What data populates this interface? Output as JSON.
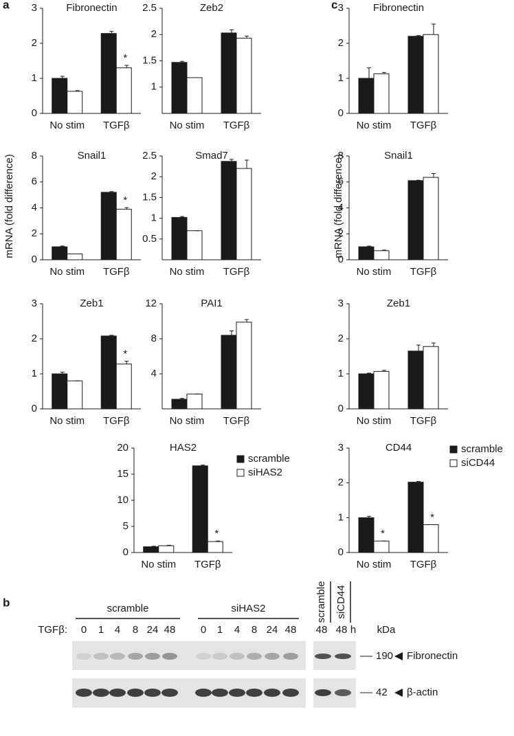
{
  "panel_labels": [
    "a",
    "c"
  ],
  "shared_ylabels": [
    "mRNA (fold difference)",
    "mRNA (fold difference)"
  ],
  "chart_data": [
    {
      "type": "bar",
      "title": "Fibronectin",
      "categories": [
        "No stim",
        "TGFβ"
      ],
      "series": [
        {
          "color": "#1a1a1a",
          "values": [
            1.0,
            2.28
          ],
          "errors": [
            0.06,
            0.06
          ],
          "annotations": [
            null,
            null
          ]
        },
        {
          "color": "#ffffff",
          "values": [
            0.63,
            1.3
          ],
          "errors": [
            0.02,
            0.07
          ],
          "annotations": [
            null,
            "*"
          ]
        }
      ],
      "ylim": [
        0,
        3
      ],
      "yticks": [
        0,
        1,
        2,
        3
      ]
    },
    {
      "type": "bar",
      "title": "Zeb2",
      "categories": [
        "No stim",
        "TGFβ"
      ],
      "series": [
        {
          "color": "#1a1a1a",
          "values": [
            1.47,
            2.03
          ],
          "errors": [
            0.02,
            0.06
          ],
          "annotations": [
            null,
            null
          ]
        },
        {
          "color": "#ffffff",
          "values": [
            1.18,
            1.93
          ],
          "errors": [
            0.0,
            0.04
          ],
          "annotations": [
            null,
            null
          ]
        }
      ],
      "ylim": [
        0.5,
        2.5
      ],
      "yticks": [
        1,
        1.5,
        2,
        2.5
      ]
    },
    {
      "type": "bar",
      "title": "Snail1",
      "categories": [
        "No stim",
        "TGFβ"
      ],
      "series": [
        {
          "color": "#1a1a1a",
          "values": [
            1.0,
            5.2
          ],
          "errors": [
            0.06,
            0.06
          ],
          "annotations": [
            null,
            null
          ]
        },
        {
          "color": "#ffffff",
          "values": [
            0.45,
            3.9
          ],
          "errors": [
            0.0,
            0.12
          ],
          "annotations": [
            null,
            "*"
          ]
        }
      ],
      "ylim": [
        0,
        8
      ],
      "yticks": [
        0,
        2,
        4,
        6,
        8
      ]
    },
    {
      "type": "bar",
      "title": "Smad7",
      "categories": [
        "No stim",
        "TGFβ"
      ],
      "series": [
        {
          "color": "#1a1a1a",
          "values": [
            1.02,
            2.37
          ],
          "errors": [
            0.02,
            0.05
          ],
          "annotations": [
            null,
            null
          ]
        },
        {
          "color": "#ffffff",
          "values": [
            0.7,
            2.2
          ],
          "errors": [
            0.0,
            0.2
          ],
          "annotations": [
            null,
            null
          ]
        }
      ],
      "ylim": [
        0,
        2.5
      ],
      "yticks": [
        0.5,
        1,
        1.5,
        2,
        2.5
      ]
    },
    {
      "type": "bar",
      "title": "Zeb1",
      "categories": [
        "No stim",
        "TGFβ"
      ],
      "series": [
        {
          "color": "#1a1a1a",
          "values": [
            1.0,
            2.08
          ],
          "errors": [
            0.05,
            0.02
          ],
          "annotations": [
            null,
            null
          ]
        },
        {
          "color": "#ffffff",
          "values": [
            0.8,
            1.28
          ],
          "errors": [
            0.0,
            0.08
          ],
          "annotations": [
            null,
            "*"
          ]
        }
      ],
      "ylim": [
        0,
        3
      ],
      "yticks": [
        0,
        1,
        2,
        3
      ]
    },
    {
      "type": "bar",
      "title": "PAI1",
      "categories": [
        "No stim",
        "TGFβ"
      ],
      "series": [
        {
          "color": "#1a1a1a",
          "values": [
            1.1,
            8.4
          ],
          "errors": [
            0.1,
            0.5
          ],
          "annotations": [
            null,
            null
          ]
        },
        {
          "color": "#ffffff",
          "values": [
            1.7,
            9.9
          ],
          "errors": [
            0.0,
            0.3
          ],
          "annotations": [
            null,
            null
          ]
        }
      ],
      "ylim": [
        0,
        12
      ],
      "yticks": [
        4,
        8,
        12
      ]
    },
    {
      "type": "bar",
      "title": "HAS2",
      "categories": [
        "No stim",
        "TGFβ"
      ],
      "series": [
        {
          "name": "scramble",
          "color": "#1a1a1a",
          "values": [
            1.1,
            16.6
          ],
          "errors": [
            0.1,
            0.15
          ],
          "annotations": [
            null,
            null
          ]
        },
        {
          "name": "siHAS2",
          "color": "#ffffff",
          "values": [
            1.3,
            2.1
          ],
          "errors": [
            0.1,
            0.1
          ],
          "annotations": [
            null,
            "*"
          ]
        }
      ],
      "ylim": [
        0,
        20
      ],
      "yticks": [
        0,
        5,
        10,
        15,
        20
      ],
      "legend": "right"
    },
    {
      "type": "bar",
      "title": "Fibronectin",
      "categories": [
        "No stim",
        "TGFβ"
      ],
      "series": [
        {
          "color": "#1a1a1a",
          "values": [
            1.0,
            2.2
          ],
          "errors": [
            0.3,
            0.02
          ],
          "annotations": [
            null,
            null
          ]
        },
        {
          "color": "#ffffff",
          "values": [
            1.13,
            2.25
          ],
          "errors": [
            0.04,
            0.3
          ],
          "annotations": [
            null,
            null
          ]
        }
      ],
      "ylim": [
        0,
        3
      ],
      "yticks": [
        0,
        1,
        2,
        3
      ]
    },
    {
      "type": "bar",
      "title": "Snail1",
      "categories": [
        "No stim",
        "TGFβ"
      ],
      "series": [
        {
          "color": "#1a1a1a",
          "values": [
            1.0,
            6.1
          ],
          "errors": [
            0.05,
            0.03
          ],
          "annotations": [
            null,
            null
          ]
        },
        {
          "color": "#ffffff",
          "values": [
            0.7,
            6.35
          ],
          "errors": [
            0.05,
            0.3
          ],
          "annotations": [
            null,
            null
          ]
        }
      ],
      "ylim": [
        0,
        8
      ],
      "yticks": [
        0,
        2,
        4,
        6,
        8
      ]
    },
    {
      "type": "bar",
      "title": "Zeb1",
      "categories": [
        "No stim",
        "TGFβ"
      ],
      "series": [
        {
          "color": "#1a1a1a",
          "values": [
            1.0,
            1.65
          ],
          "errors": [
            0.02,
            0.17
          ],
          "annotations": [
            null,
            null
          ]
        },
        {
          "color": "#ffffff",
          "values": [
            1.07,
            1.78
          ],
          "errors": [
            0.03,
            0.1
          ],
          "annotations": [
            null,
            null
          ]
        }
      ],
      "ylim": [
        0,
        3
      ],
      "yticks": [
        0,
        1,
        2,
        3
      ]
    },
    {
      "type": "bar",
      "title": "CD44",
      "categories": [
        "No stim",
        "TGFβ"
      ],
      "series": [
        {
          "name": "scramble",
          "color": "#1a1a1a",
          "values": [
            1.0,
            2.02
          ],
          "errors": [
            0.04,
            0.02
          ],
          "annotations": [
            null,
            null
          ]
        },
        {
          "name": "siCD44",
          "color": "#ffffff",
          "values": [
            0.33,
            0.8
          ],
          "errors": [
            0.0,
            0.0
          ],
          "annotations": [
            "*",
            "*"
          ]
        }
      ],
      "ylim": [
        0,
        3
      ],
      "yticks": [
        0,
        1,
        2,
        3
      ],
      "legend": "right"
    }
  ],
  "blot": {
    "panel_label": "b",
    "groups": [
      "scramble",
      "siHAS2"
    ],
    "treatment_label": "TGFβ:",
    "timepoints": [
      [
        0,
        1,
        4,
        8,
        24,
        48
      ],
      [
        0,
        1,
        4,
        8,
        24,
        48
      ]
    ],
    "right_lanes": [
      "scramble",
      "siCD44"
    ],
    "right_timepoints": [
      48,
      48
    ],
    "time_unit": "h",
    "mw_unit": "kDa",
    "rows": [
      {
        "mw": "190",
        "protein": "Fibronectin"
      },
      {
        "mw": "42",
        "protein": "β-actin"
      }
    ]
  }
}
